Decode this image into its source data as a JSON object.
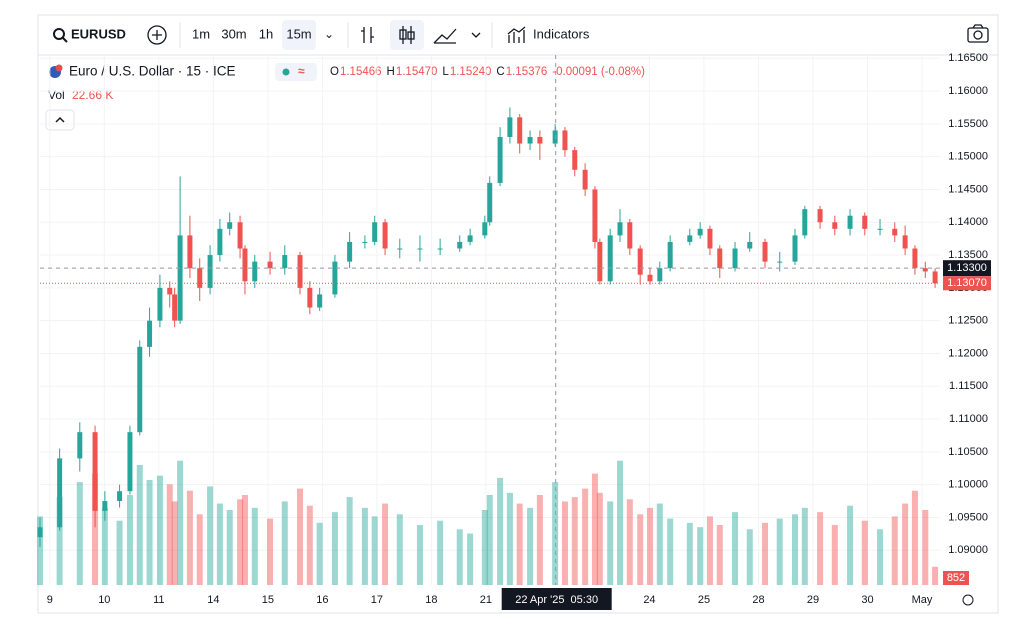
{
  "toolbar": {
    "symbol": "EURUSD",
    "intervals": [
      "1m",
      "30m",
      "1h",
      "15m"
    ],
    "indicators": "Indicators"
  },
  "legend": {
    "name": "Euro / U.S. Dollar · 15 · ICE",
    "ohlc": [
      {
        "key": "O",
        "value": "1.15466"
      },
      {
        "key": "H",
        "value": "1.15470"
      },
      {
        "key": "L",
        "value": "1.15240"
      },
      {
        "key": "C",
        "value": "1.15376"
      }
    ],
    "change": "-0.00091 (-0.08%)",
    "vol_label": "Vol",
    "vol_value": "22.66 K"
  },
  "chart_data": {
    "type": "candlestick",
    "up_color": "#26a69a",
    "down_color": "#ef5350",
    "grid": true,
    "xlim": [
      -0.18,
      16.33
    ],
    "xticks": [
      {
        "value": 0,
        "label": "9"
      },
      {
        "value": 1,
        "label": "10"
      },
      {
        "value": 2,
        "label": "11"
      },
      {
        "value": 3,
        "label": "14"
      },
      {
        "value": 4,
        "label": "15"
      },
      {
        "value": 5,
        "label": "16"
      },
      {
        "value": 6,
        "label": "17"
      },
      {
        "value": 7,
        "label": "18"
      },
      {
        "value": 8,
        "label": "21"
      },
      {
        "value": 11,
        "label": "24"
      },
      {
        "value": 12,
        "label": "25"
      },
      {
        "value": 13,
        "label": "28"
      },
      {
        "value": 14,
        "label": "29"
      },
      {
        "value": 15,
        "label": "30"
      },
      {
        "value": 16,
        "label": "May"
      }
    ],
    "ylim": [
      1.0847,
      1.1655
    ],
    "yticks": [
      {
        "value": 1.165,
        "label": "1.16500"
      },
      {
        "value": 1.16,
        "label": "1.16000"
      },
      {
        "value": 1.155,
        "label": "1.15500"
      },
      {
        "value": 1.15,
        "label": "1.15000"
      },
      {
        "value": 1.145,
        "label": "1.14500"
      },
      {
        "value": 1.14,
        "label": "1.14000"
      },
      {
        "value": 1.135,
        "label": "1.13500"
      },
      {
        "value": 1.13,
        "label": "1.13000"
      },
      {
        "value": 1.125,
        "label": "1.12500"
      },
      {
        "value": 1.12,
        "label": "1.12000"
      },
      {
        "value": 1.115,
        "label": "1.11500"
      },
      {
        "value": 1.11,
        "label": "1.11000"
      },
      {
        "value": 1.105,
        "label": "1.10500"
      },
      {
        "value": 1.1,
        "label": "1.10000"
      },
      {
        "value": 1.095,
        "label": "1.09500"
      },
      {
        "value": 1.09,
        "label": "1.09000"
      }
    ],
    "x": [
      -0.18,
      0.18,
      0.55,
      0.83,
      1.01,
      1.28,
      1.47,
      1.65,
      1.83,
      2.02,
      2.2,
      2.29,
      2.39,
      2.57,
      2.75,
      2.94,
      3.12,
      3.3,
      3.49,
      3.58,
      3.76,
      4.04,
      4.31,
      4.59,
      4.77,
      4.95,
      5.23,
      5.5,
      5.78,
      5.96,
      6.15,
      6.42,
      6.79,
      7.16,
      7.52,
      7.71,
      7.98,
      8.07,
      8.26,
      8.44,
      8.62,
      8.81,
      8.99,
      9.27,
      9.45,
      9.63,
      9.82,
      10,
      10.09,
      10.28,
      10.46,
      10.64,
      10.83,
      11.01,
      11.19,
      11.38,
      11.74,
      11.93,
      12.11,
      12.29,
      12.57,
      12.84,
      13.12,
      13.39,
      13.67,
      13.85,
      14.13,
      14.4,
      14.68,
      14.95,
      15.23,
      15.5,
      15.69,
      15.87,
      16.06,
      16.24
    ],
    "open": [
      1.092,
      1.0935,
      1.104,
      1.108,
      1.096,
      1.0975,
      1.099,
      1.108,
      1.121,
      1.125,
      1.13,
      1.129,
      1.125,
      1.138,
      1.133,
      1.13,
      1.135,
      1.139,
      1.14,
      1.136,
      1.131,
      1.134,
      1.133,
      1.135,
      1.13,
      1.127,
      1.129,
      1.134,
      1.137,
      1.137,
      1.14,
      1.136,
      1.136,
      1.136,
      1.136,
      1.137,
      1.138,
      1.14,
      1.146,
      1.153,
      1.156,
      1.152,
      1.153,
      1.152,
      1.154,
      1.151,
      1.148,
      1.145,
      1.137,
      1.131,
      1.138,
      1.14,
      1.136,
      1.132,
      1.131,
      1.133,
      1.137,
      1.138,
      1.139,
      1.136,
      1.133,
      1.136,
      1.137,
      1.134,
      1.134,
      1.138,
      1.142,
      1.14,
      1.139,
      1.141,
      1.139,
      1.139,
      1.138,
      1.136,
      1.133,
      1.1325
    ],
    "high": [
      1.095,
      1.1055,
      1.1095,
      1.109,
      1.099,
      1.1,
      1.109,
      1.122,
      1.127,
      1.132,
      1.131,
      1.13,
      1.147,
      1.141,
      1.1345,
      1.1365,
      1.1405,
      1.1415,
      1.141,
      1.1365,
      1.135,
      1.1355,
      1.1365,
      1.1355,
      1.131,
      1.13,
      1.135,
      1.1385,
      1.138,
      1.141,
      1.1405,
      1.1375,
      1.138,
      1.1375,
      1.138,
      1.139,
      1.141,
      1.147,
      1.1545,
      1.1575,
      1.1565,
      1.154,
      1.154,
      1.155,
      1.1545,
      1.1515,
      1.149,
      1.1455,
      1.1375,
      1.139,
      1.142,
      1.1405,
      1.1365,
      1.133,
      1.134,
      1.138,
      1.139,
      1.14,
      1.1395,
      1.1365,
      1.137,
      1.1385,
      1.1375,
      1.1355,
      1.139,
      1.1425,
      1.1425,
      1.141,
      1.142,
      1.1415,
      1.1405,
      1.14,
      1.1395,
      1.1365,
      1.134,
      1.133
    ],
    "low": [
      1.0905,
      1.093,
      1.102,
      1.0935,
      1.0945,
      1.0965,
      1.0985,
      1.1075,
      1.1195,
      1.124,
      1.127,
      1.124,
      1.1245,
      1.1315,
      1.128,
      1.129,
      1.134,
      1.138,
      1.1345,
      1.129,
      1.13,
      1.132,
      1.132,
      1.129,
      1.126,
      1.1265,
      1.1285,
      1.133,
      1.136,
      1.1365,
      1.135,
      1.1345,
      1.134,
      1.135,
      1.1355,
      1.1365,
      1.1375,
      1.1395,
      1.1455,
      1.152,
      1.1505,
      1.151,
      1.1495,
      1.1515,
      1.15,
      1.147,
      1.144,
      1.136,
      1.1305,
      1.1305,
      1.137,
      1.135,
      1.1305,
      1.1305,
      1.1305,
      1.1325,
      1.1365,
      1.1375,
      1.135,
      1.1315,
      1.1325,
      1.1355,
      1.133,
      1.1325,
      1.1335,
      1.1375,
      1.139,
      1.138,
      1.138,
      1.138,
      1.138,
      1.137,
      1.135,
      1.132,
      1.1315,
      1.13
    ],
    "close": [
      1.0935,
      1.104,
      1.108,
      1.096,
      1.0975,
      1.099,
      1.108,
      1.121,
      1.125,
      1.13,
      1.129,
      1.125,
      1.138,
      1.133,
      1.13,
      1.135,
      1.139,
      1.14,
      1.136,
      1.131,
      1.134,
      1.133,
      1.135,
      1.13,
      1.127,
      1.129,
      1.134,
      1.137,
      1.137,
      1.14,
      1.136,
      1.136,
      1.136,
      1.136,
      1.137,
      1.138,
      1.14,
      1.146,
      1.153,
      1.156,
      1.152,
      1.153,
      1.152,
      1.154,
      1.151,
      1.148,
      1.145,
      1.137,
      1.131,
      1.138,
      1.14,
      1.136,
      1.132,
      1.131,
      1.133,
      1.137,
      1.138,
      1.139,
      1.136,
      1.133,
      1.136,
      1.137,
      1.134,
      1.134,
      1.138,
      1.142,
      1.14,
      1.139,
      1.141,
      1.139,
      1.139,
      1.138,
      1.136,
      1.133,
      1.1325,
      1.1307
    ],
    "volume": {
      "lim": [
        0,
        14000
      ],
      "values": [
        3200,
        4100,
        4800,
        5200,
        3600,
        3000,
        4200,
        5600,
        4900,
        5100,
        4700,
        3900,
        5800,
        4400,
        3300,
        4600,
        3800,
        3500,
        4000,
        4200,
        3600,
        3100,
        3900,
        4500,
        3700,
        2900,
        3400,
        4100,
        3600,
        3200,
        3800,
        3300,
        2800,
        3000,
        2600,
        2400,
        3500,
        4200,
        5000,
        4300,
        3800,
        3600,
        4200,
        4800,
        3900,
        4100,
        4500,
        5200,
        4300,
        3900,
        5800,
        4000,
        3300,
        3600,
        3800,
        3100,
        2900,
        2700,
        3200,
        2800,
        3400,
        2600,
        2900,
        3100,
        3300,
        3600,
        3400,
        2800,
        3700,
        3000,
        2600,
        3200,
        3800,
        4400,
        3500,
        852
      ]
    },
    "crosshair": {
      "x": 9.28,
      "time_label": "22 Apr '25  05:30",
      "price": {
        "value": 1.133,
        "label": "1.13300"
      }
    },
    "last_price": {
      "value": 1.1307,
      "label": "1.13070"
    }
  }
}
